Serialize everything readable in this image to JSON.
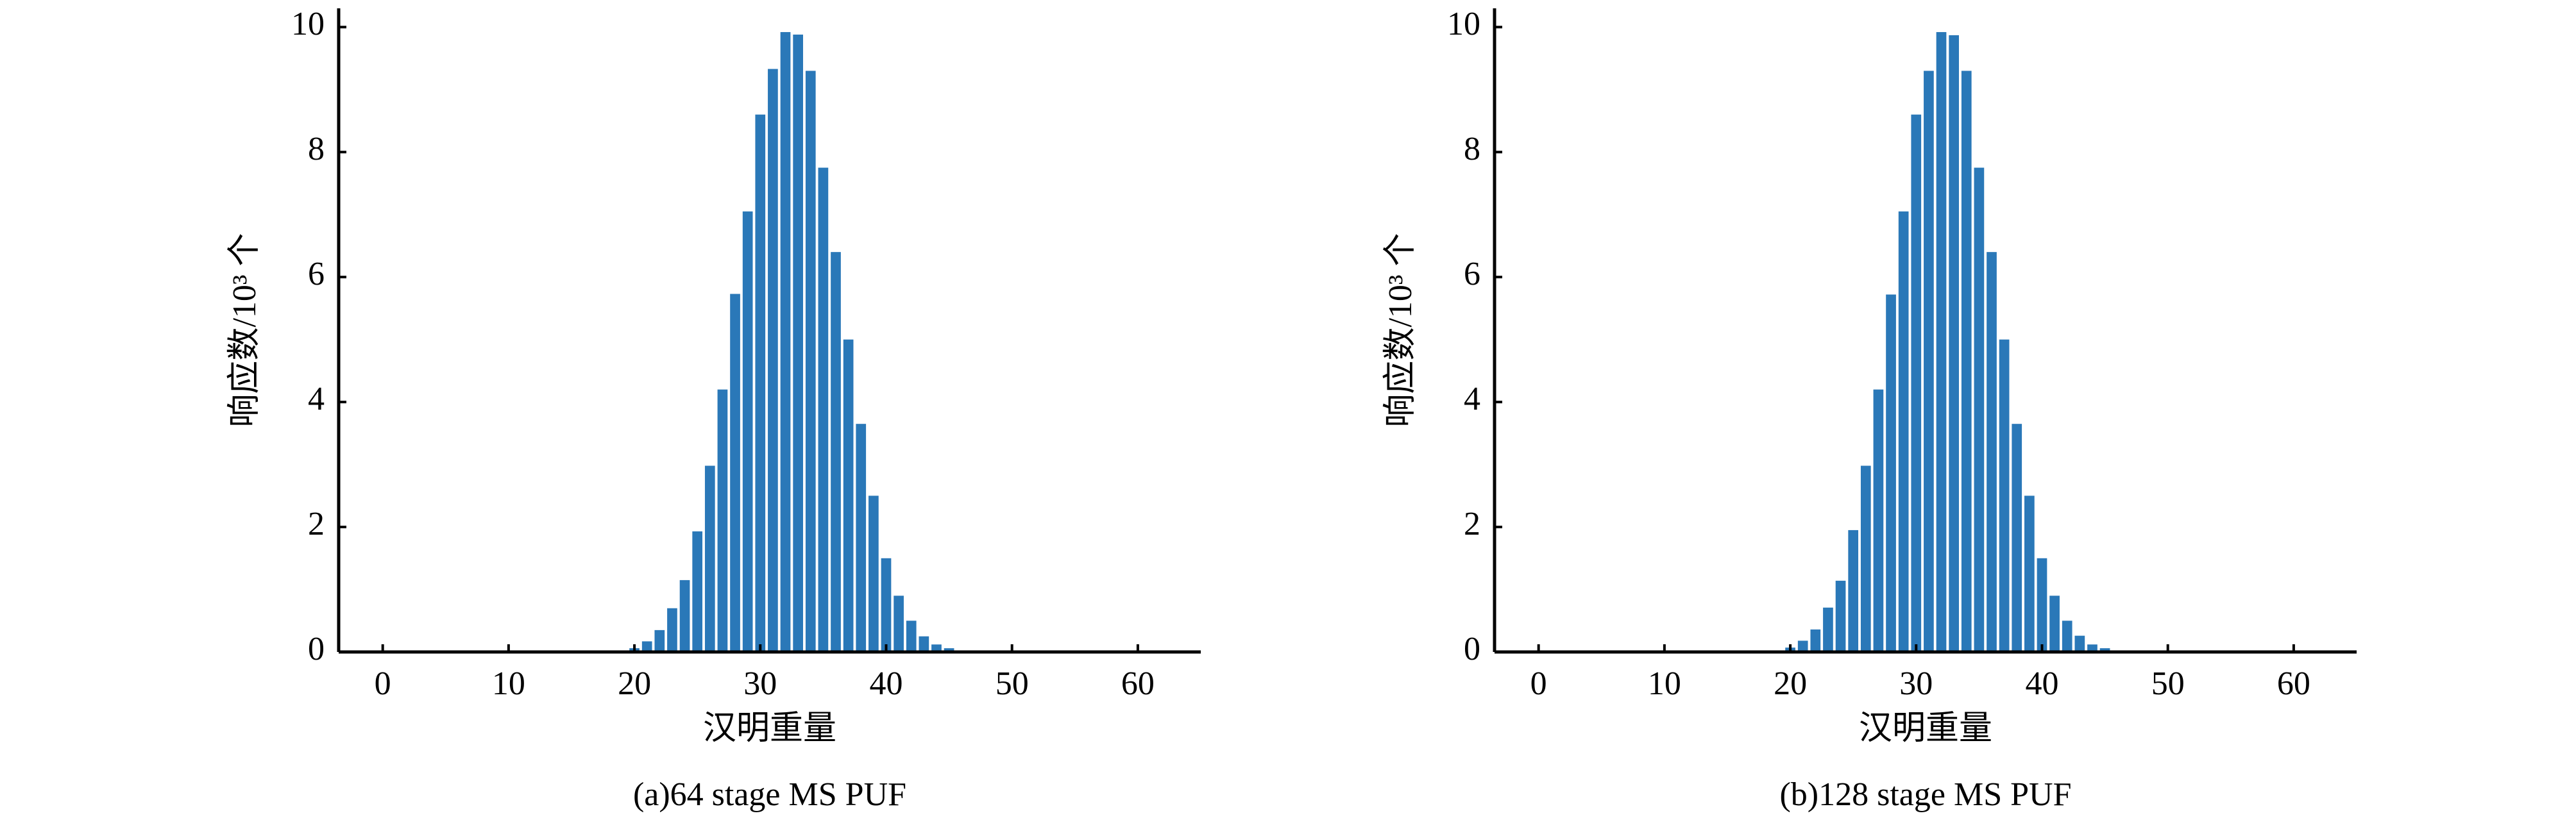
{
  "chart_data": [
    {
      "type": "bar",
      "caption": "(a)64 stage MS PUF",
      "x_label": "汉明重量",
      "y_label": "响应数/10³ 个",
      "color": "#2a78b8",
      "x": [
        19,
        20,
        21,
        22,
        23,
        24,
        25,
        26,
        27,
        28,
        29,
        30,
        31,
        32,
        33,
        34,
        35,
        36,
        37,
        38,
        39,
        40,
        41,
        42,
        43,
        44,
        45,
        46
      ],
      "values": [
        0.02,
        0.06,
        0.17,
        0.35,
        0.7,
        1.15,
        1.93,
        2.98,
        4.2,
        5.73,
        7.05,
        8.6,
        9.33,
        9.92,
        9.88,
        9.3,
        7.75,
        6.4,
        5.0,
        3.65,
        2.5,
        1.5,
        0.9,
        0.5,
        0.25,
        0.12,
        0.06,
        0.02
      ],
      "xlim": [
        -3.5,
        65
      ],
      "ylim": [
        0,
        10.3
      ],
      "xticks": [
        0,
        10,
        20,
        30,
        40,
        50,
        60
      ],
      "yticks": [
        0,
        2,
        4,
        6,
        8,
        10
      ]
    },
    {
      "type": "bar",
      "caption": "(b)128 stage MS PUF",
      "x_label": "汉明重量",
      "y_label": "响应数/10³ 个",
      "color": "#2a78b8",
      "x": [
        19,
        20,
        21,
        22,
        23,
        24,
        25,
        26,
        27,
        28,
        29,
        30,
        31,
        32,
        33,
        34,
        35,
        36,
        37,
        38,
        39,
        40,
        41,
        42,
        43,
        44,
        45,
        46
      ],
      "values": [
        0.02,
        0.07,
        0.18,
        0.36,
        0.71,
        1.14,
        1.95,
        2.98,
        4.2,
        5.72,
        7.05,
        8.6,
        9.3,
        9.92,
        9.87,
        9.3,
        7.75,
        6.4,
        5.0,
        3.65,
        2.5,
        1.5,
        0.9,
        0.5,
        0.26,
        0.12,
        0.06,
        0.02
      ],
      "xlim": [
        -3.5,
        65
      ],
      "ylim": [
        0,
        10.3
      ],
      "xticks": [
        0,
        10,
        20,
        30,
        40,
        50,
        60
      ],
      "yticks": [
        0,
        2,
        4,
        6,
        8,
        10
      ]
    }
  ]
}
